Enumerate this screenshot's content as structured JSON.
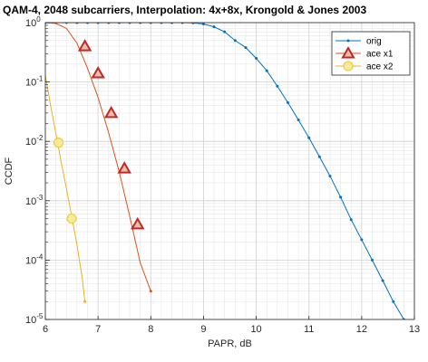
{
  "chart_data": {
    "type": "line",
    "title": "QAM-4, 2048 subcarriers, Interpolation: 4x+8x, Krongold & Jones 2003",
    "xlabel": "PAPR, dB",
    "ylabel": "CCDF",
    "xlim": [
      6,
      13
    ],
    "ylim": [
      1e-05,
      1
    ],
    "yscale": "log",
    "grid": true,
    "minor_grid": true,
    "legend_position": "top-right",
    "x_ticks": [
      "6",
      "7",
      "8",
      "9",
      "10",
      "11",
      "12",
      "13"
    ],
    "y_ticks": [
      {
        "base": "10",
        "exp": "0"
      },
      {
        "base": "10",
        "exp": "-1"
      },
      {
        "base": "10",
        "exp": "-2"
      },
      {
        "base": "10",
        "exp": "-3"
      },
      {
        "base": "10",
        "exp": "-4"
      },
      {
        "base": "10",
        "exp": "-5"
      }
    ],
    "series": [
      {
        "name": "orig",
        "color": "#0072bd",
        "marker": "dot",
        "x": [
          6.0,
          6.2,
          6.4,
          6.6,
          6.8,
          7.0,
          7.2,
          7.4,
          7.6,
          7.8,
          8.0,
          8.2,
          8.4,
          8.6,
          8.8,
          9.0,
          9.2,
          9.4,
          9.6,
          9.8,
          10.0,
          10.2,
          10.4,
          10.6,
          10.8,
          11.0,
          11.2,
          11.4,
          11.6,
          11.8,
          12.0,
          12.2,
          12.4,
          12.6,
          12.8,
          13.0
        ],
        "y": [
          1,
          1,
          1,
          1,
          1,
          1,
          1,
          1,
          1,
          1,
          1,
          1,
          1,
          0.999,
          0.99,
          0.95,
          0.85,
          0.7,
          0.5,
          0.38,
          0.25,
          0.155,
          0.085,
          0.045,
          0.023,
          0.0115,
          0.0055,
          0.0026,
          0.00115,
          0.00048,
          0.00022,
          0.0001,
          4.5e-05,
          2e-05,
          1e-05,
          4.2e-06
        ]
      },
      {
        "name": "ace x1",
        "color": "#d95319",
        "marker": "triangle",
        "x": [
          6.0,
          6.2,
          6.4,
          6.6,
          6.8,
          7.0,
          7.2,
          7.4,
          7.6,
          7.8,
          8.0
        ],
        "y": [
          1,
          0.97,
          0.8,
          0.45,
          0.17,
          0.055,
          0.014,
          0.0031,
          0.00055,
          9e-05,
          3e-05
        ],
        "marker_points": {
          "x": [
            6.75,
            7.0,
            7.25,
            7.5,
            7.75
          ],
          "y": [
            0.4,
            0.14,
            0.03,
            0.0035,
            0.0004
          ]
        }
      },
      {
        "name": "ace x2",
        "color": "#edb120",
        "marker": "circle",
        "x": [
          6.0,
          6.1,
          6.2,
          6.3,
          6.4,
          6.5,
          6.6,
          6.7,
          6.75
        ],
        "y": [
          0.13,
          0.04,
          0.0135,
          0.0045,
          0.0016,
          0.00055,
          0.00018,
          5e-05,
          2e-05
        ],
        "marker_points": {
          "x": [
            6.25,
            6.5
          ],
          "y": [
            0.0095,
            0.0005
          ]
        }
      }
    ]
  }
}
